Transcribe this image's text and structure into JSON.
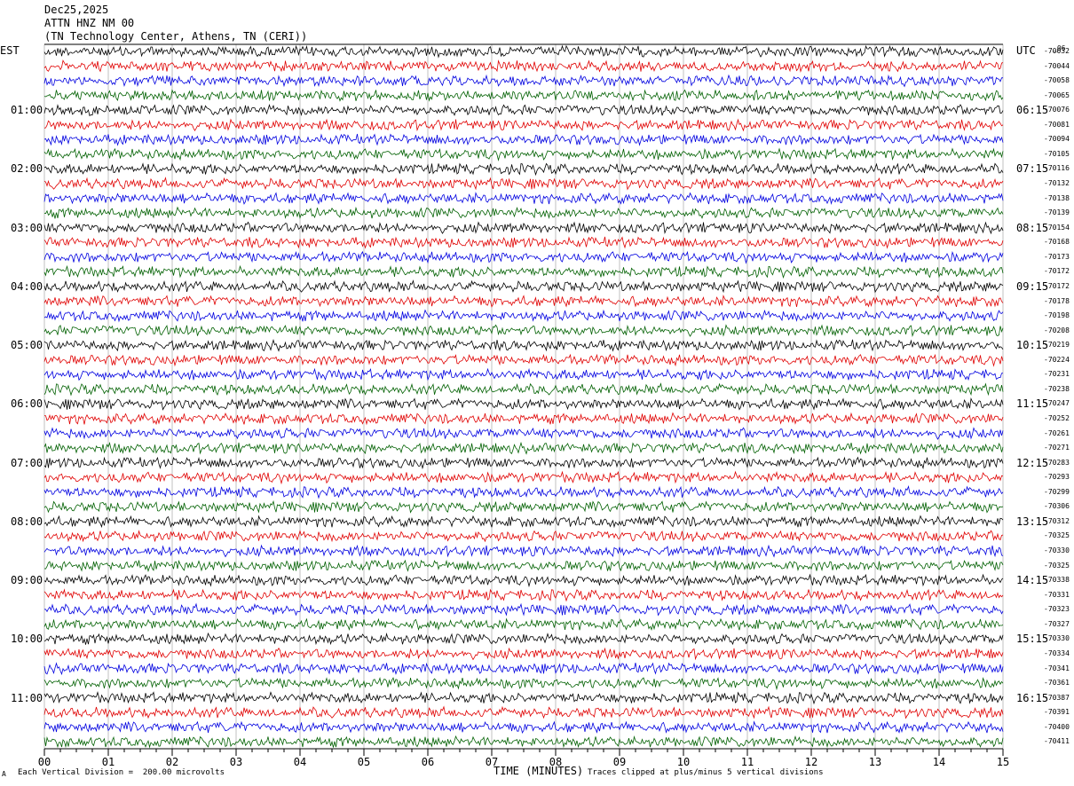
{
  "header": {
    "date": "Dec25,2025",
    "station": "ATTN HNZ NM 00",
    "location": "(TN Technology Center, Athens, TN (CERI))"
  },
  "left_tz": "EST",
  "right_tz": "UTC",
  "top_right_mark": "_06",
  "footer": {
    "scale": "Each Vertical Division =  200.00 microvolts",
    "clip": "Traces clipped at plus/minus 5 vertical divisions",
    "mark": "A"
  },
  "chart_data": {
    "type": "line",
    "title": "",
    "xlabel": "TIME (MINUTES)",
    "ylabel": "",
    "xlim": [
      0,
      15
    ],
    "x_ticks": [
      "00",
      "01",
      "02",
      "03",
      "04",
      "05",
      "06",
      "07",
      "08",
      "09",
      "10",
      "11",
      "12",
      "13",
      "14",
      "15"
    ],
    "left_hour_labels": [
      "01:00",
      "02:00",
      "03:00",
      "04:00",
      "05:00",
      "06:00",
      "07:00",
      "08:00",
      "09:00",
      "10:00",
      "11:00"
    ],
    "right_hour_labels": [
      "06:15",
      "07:15",
      "08:15",
      "09:15",
      "10:15",
      "11:15",
      "12:15",
      "13:15",
      "14:15",
      "15:15",
      "16:15"
    ],
    "trace_colors": [
      "#000000",
      "#e00000",
      "#0000e0",
      "#006000"
    ],
    "trace_counts": [
      "-70032",
      "-70044",
      "-70058",
      "-70065",
      "-70076",
      "-70081",
      "-70094",
      "-70105",
      "-70116",
      "-70132",
      "-70138",
      "-70139",
      "-70154",
      "-70168",
      "-70173",
      "-70172",
      "-70172",
      "-70178",
      "-70198",
      "-70208",
      "-70219",
      "-70224",
      "-70231",
      "-70238",
      "-70247",
      "-70252",
      "-70261",
      "-70271",
      "-70283",
      "-70293",
      "-70299",
      "-70306",
      "-70312",
      "-70325",
      "-70330",
      "-70325",
      "-70338",
      "-70331",
      "-70323",
      "-70327",
      "-70330",
      "-70334",
      "-70341",
      "-70361",
      "-70387",
      "-70391",
      "-70400",
      "-70411"
    ],
    "grid": true
  }
}
